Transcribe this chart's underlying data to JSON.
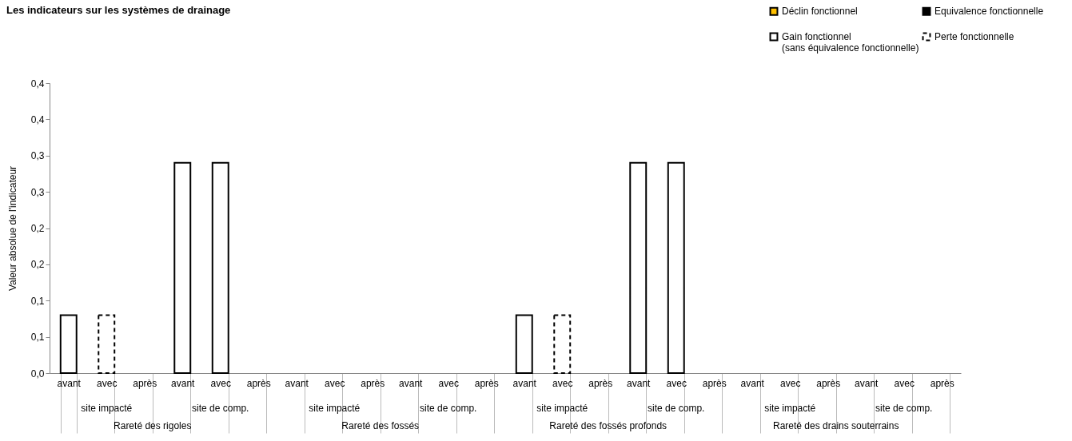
{
  "chart_data": {
    "type": "bar",
    "title": "Les indicateurs sur les systèmes de drainage",
    "ylabel": "Valeur absolue de l'indicateur",
    "categories": [
      "avant",
      "avec",
      "après",
      "avant",
      "avec",
      "après",
      "avant",
      "avec",
      "après",
      "avant",
      "avec",
      "après",
      "avant",
      "avec",
      "après",
      "avant",
      "avec",
      "après",
      "avant",
      "avec",
      "après",
      "avant",
      "avec",
      "après"
    ],
    "annotations": [
      "site impacté",
      "site de comp.",
      "site impacté",
      "site de comp.",
      "site impacté",
      "site de comp.",
      "site impacté",
      "site de comp.",
      "Rareté des rigoles",
      "Rareté des fossés",
      "Rareté des fossés profonds",
      "Rareté des drains souterrains"
    ],
    "series": [
      {
        "name": "Déclin fonctionnel",
        "color": "#ffc000",
        "values": [
          null,
          null,
          null,
          null,
          null,
          null,
          null,
          null,
          null,
          null,
          null,
          null,
          null,
          null,
          null,
          null,
          null,
          null,
          null,
          null,
          null,
          null,
          null,
          null
        ]
      },
      {
        "name": "Equivalence fonctionnelle",
        "color": "#000000",
        "values": [
          null,
          null,
          null,
          null,
          null,
          null,
          null,
          null,
          null,
          null,
          null,
          null,
          null,
          null,
          null,
          null,
          null,
          null,
          null,
          null,
          null,
          null,
          null,
          null
        ]
      },
      {
        "name": "Gain fonctionnel\n(sans équivalence fonctionnelle)",
        "color": "#ffffff",
        "values": [
          0.08,
          null,
          null,
          0.29,
          0.29,
          null,
          null,
          null,
          null,
          null,
          null,
          null,
          0.08,
          null,
          null,
          0.29,
          0.29,
          null,
          null,
          null,
          null,
          null,
          null,
          null
        ]
      },
      {
        "name": "Perte fonctionnelle",
        "color": "#ffffff",
        "line_style": "dashed",
        "values": [
          null,
          0.08,
          null,
          null,
          null,
          null,
          null,
          null,
          null,
          null,
          null,
          null,
          null,
          0.08,
          null,
          null,
          null,
          null,
          null,
          null,
          null,
          null,
          null,
          null
        ]
      }
    ],
    "ylim": [
      0,
      0.4
    ],
    "yticks": [
      {
        "value": 0,
        "label": "0,0"
      },
      {
        "value": 0.05,
        "label": "0,1"
      },
      {
        "value": 0.1,
        "label": "0,1"
      },
      {
        "value": 0.15,
        "label": "0,2"
      },
      {
        "value": 0.2,
        "label": "0,2"
      },
      {
        "value": 0.25,
        "label": "0,3"
      },
      {
        "value": 0.3,
        "label": "0,3"
      },
      {
        "value": 0.35,
        "label": "0,4"
      },
      {
        "value": 0.4,
        "label": "0,4"
      }
    ],
    "grid": false,
    "legend": "top right"
  }
}
